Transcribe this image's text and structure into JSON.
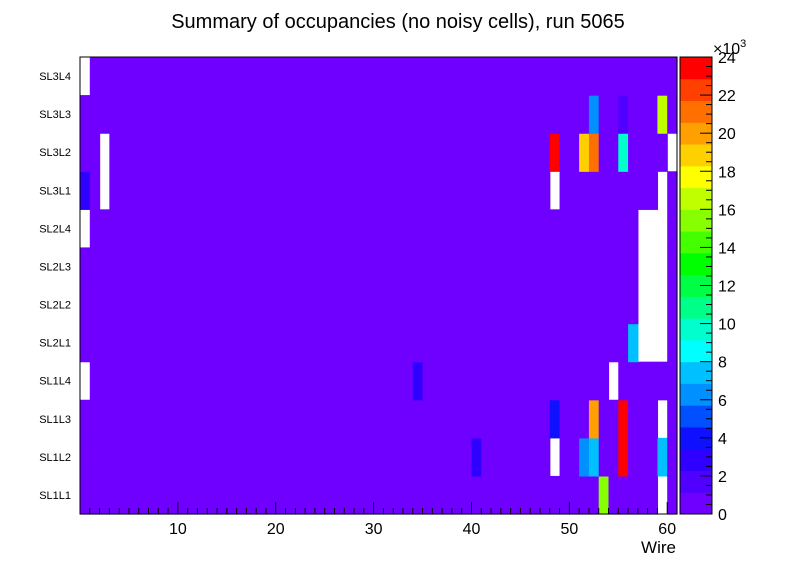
{
  "chart_data": {
    "type": "heatmap",
    "title": "Summary of occupancies (no noisy cells), run 5065",
    "xlabel": "Wire",
    "ylabel": "",
    "x_range": [
      0,
      60
    ],
    "x_ticks": [
      10,
      20,
      30,
      40,
      50,
      60
    ],
    "y_categories": [
      "SL1L1",
      "SL1L2",
      "SL1L3",
      "SL1L4",
      "SL2L1",
      "SL2L2",
      "SL2L3",
      "SL2L4",
      "SL3L1",
      "SL3L2",
      "SL3L3",
      "SL3L4"
    ],
    "default_value": 1000,
    "colorbar": {
      "min": 0,
      "max": 24,
      "ticks": [
        0,
        2,
        4,
        6,
        8,
        10,
        12,
        14,
        16,
        18,
        20,
        22,
        24
      ],
      "exponent_label": "×10",
      "exponent_power": "3",
      "unit_multiplier": 1000,
      "palette": [
        "#6f00ff",
        "#5000ff",
        "#2f00ff",
        "#0f10ff",
        "#0050ff",
        "#0090ff",
        "#00c0ff",
        "#00ffff",
        "#00ffcc",
        "#00ff88",
        "#00ff44",
        "#00ff00",
        "#44ff00",
        "#88ff00",
        "#c0ff00",
        "#ffff00",
        "#ffd000",
        "#ffa000",
        "#ff7000",
        "#ff4000",
        "#ff0000"
      ]
    },
    "empty_cells": [
      {
        "layer": "SL3L4",
        "wires": [
          1
        ]
      },
      {
        "layer": "SL3L2",
        "wires": [
          3,
          61
        ]
      },
      {
        "layer": "SL3L1",
        "wires": [
          3,
          49,
          60
        ]
      },
      {
        "layer": "SL2L4",
        "wires": [
          1,
          58,
          59,
          60
        ]
      },
      {
        "layer": "SL2L3",
        "wires": [
          58,
          59,
          60
        ]
      },
      {
        "layer": "SL2L2",
        "wires": [
          58,
          59,
          60
        ]
      },
      {
        "layer": "SL2L1",
        "wires": [
          58,
          59,
          60
        ]
      },
      {
        "layer": "SL1L4",
        "wires": [
          1,
          55
        ]
      },
      {
        "layer": "SL1L3",
        "wires": [
          60
        ]
      },
      {
        "layer": "SL1L2",
        "wires": [
          49
        ]
      },
      {
        "layer": "SL1L1",
        "wires": [
          60
        ]
      }
    ],
    "hot_cells": [
      {
        "layer": "SL3L3",
        "wire": 53,
        "value": 6500
      },
      {
        "layer": "SL3L3",
        "wire": 56,
        "value": 2000
      },
      {
        "layer": "SL3L3",
        "wire": 60,
        "value": 16000
      },
      {
        "layer": "SL3L2",
        "wire": 49,
        "value": 23000
      },
      {
        "layer": "SL3L2",
        "wire": 52,
        "value": 18500
      },
      {
        "layer": "SL3L2",
        "wire": 53,
        "value": 21500
      },
      {
        "layer": "SL3L2",
        "wire": 56,
        "value": 9500
      },
      {
        "layer": "SL3L1",
        "wire": 1,
        "value": 2500
      },
      {
        "layer": "SL2L1",
        "wire": 57,
        "value": 7000
      },
      {
        "layer": "SL1L4",
        "wire": 35,
        "value": 2500
      },
      {
        "layer": "SL1L3",
        "wire": 49,
        "value": 3500
      },
      {
        "layer": "SL1L3",
        "wire": 53,
        "value": 20500
      },
      {
        "layer": "SL1L3",
        "wire": 56,
        "value": 24000
      },
      {
        "layer": "SL1L2",
        "wire": 41,
        "value": 2500
      },
      {
        "layer": "SL1L2",
        "wire": 52,
        "value": 6500
      },
      {
        "layer": "SL1L2",
        "wire": 53,
        "value": 7500
      },
      {
        "layer": "SL1L2",
        "wire": 56,
        "value": 24000
      },
      {
        "layer": "SL1L2",
        "wire": 60,
        "value": 7500
      },
      {
        "layer": "SL1L1",
        "wire": 54,
        "value": 15500
      }
    ]
  }
}
